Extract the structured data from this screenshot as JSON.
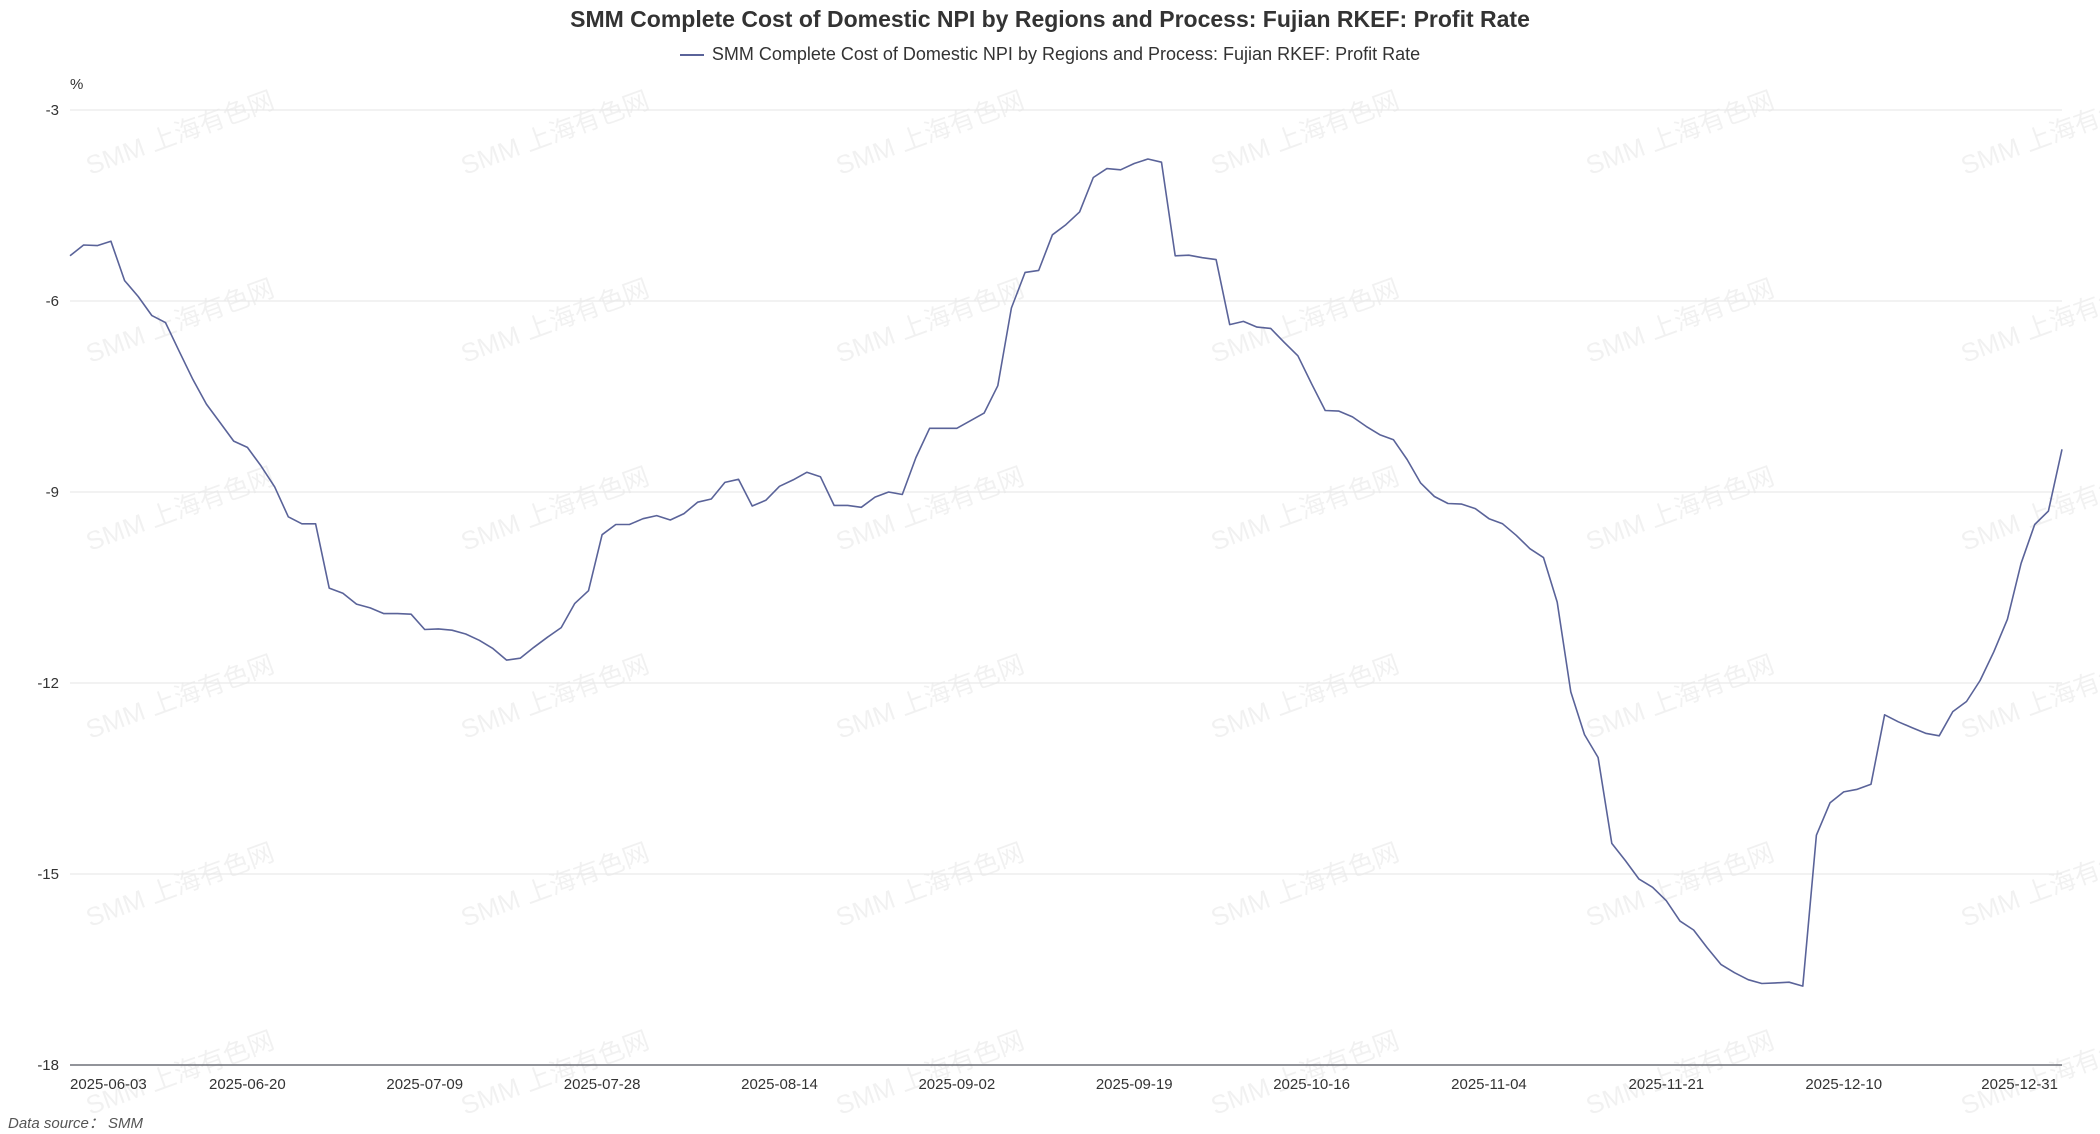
{
  "chart_data": {
    "type": "line",
    "title": "SMM Complete Cost of Domestic NPI by Regions and Process: Fujian RKEF: Profit Rate",
    "ylabel": "%",
    "xlabel": "",
    "ylim": [
      -18,
      -3
    ],
    "yticks": [
      -3,
      -6,
      -9,
      -12,
      -15,
      -18
    ],
    "xtick_labels": [
      "2025-06-03",
      "2025-06-20",
      "2025-07-09",
      "2025-07-28",
      "2025-08-14",
      "2025-09-02",
      "2025-09-19",
      "2025-10-16",
      "2025-11-04",
      "2025-11-21",
      "2025-12-10",
      "2025-12-31"
    ],
    "grid": true,
    "legend_position": "top-center",
    "series": [
      {
        "name": "SMM Complete Cost of Domestic NPI by Regions and Process: Fujian RKEF: Profit Rate",
        "color": "#5a6399",
        "values": [
          -5.29,
          -5.12,
          -5.13,
          -5.06,
          -5.68,
          -5.93,
          -6.23,
          -6.34,
          -6.79,
          -7.23,
          -7.62,
          -7.91,
          -8.2,
          -8.3,
          -8.59,
          -8.92,
          -9.39,
          -9.5,
          -9.5,
          -10.51,
          -10.59,
          -10.76,
          -10.82,
          -10.91,
          -10.91,
          -10.92,
          -11.16,
          -11.15,
          -11.17,
          -11.23,
          -11.33,
          -11.46,
          -11.64,
          -11.61,
          -11.44,
          -11.28,
          -11.13,
          -10.75,
          -10.55,
          -9.67,
          -9.51,
          -9.51,
          -9.42,
          -9.37,
          -9.44,
          -9.34,
          -9.16,
          -9.11,
          -8.85,
          -8.8,
          -9.22,
          -9.13,
          -8.91,
          -8.81,
          -8.69,
          -8.76,
          -9.21,
          -9.21,
          -9.24,
          -9.08,
          -9.0,
          -9.04,
          -8.46,
          -8.0,
          -8.0,
          -8.0,
          -7.88,
          -7.76,
          -7.33,
          -6.11,
          -5.55,
          -5.52,
          -4.96,
          -4.8,
          -4.6,
          -4.06,
          -3.92,
          -3.94,
          -3.84,
          -3.77,
          -3.82,
          -5.29,
          -5.28,
          -5.32,
          -5.35,
          -6.37,
          -6.32,
          -6.41,
          -6.43,
          -6.65,
          -6.86,
          -7.3,
          -7.72,
          -7.73,
          -7.82,
          -7.97,
          -8.1,
          -8.18,
          -8.49,
          -8.86,
          -9.07,
          -9.18,
          -9.19,
          -9.26,
          -9.42,
          -9.5,
          -9.68,
          -9.89,
          -10.03,
          -10.73,
          -12.14,
          -12.81,
          -13.17,
          -14.52,
          -14.79,
          -15.08,
          -15.21,
          -15.42,
          -15.74,
          -15.88,
          -16.16,
          -16.42,
          -16.55,
          -16.66,
          -16.72,
          -16.71,
          -16.7,
          -16.76,
          -14.39,
          -13.88,
          -13.71,
          -13.67,
          -13.59,
          -12.5,
          -12.61,
          -12.7,
          -12.79,
          -12.83,
          -12.45,
          -12.29,
          -11.96,
          -11.51,
          -11.0,
          -10.12,
          -9.51,
          -9.3,
          -8.33
        ]
      }
    ]
  },
  "source_label": "Data source：  SMM",
  "watermark": "SMM 上海有色网"
}
